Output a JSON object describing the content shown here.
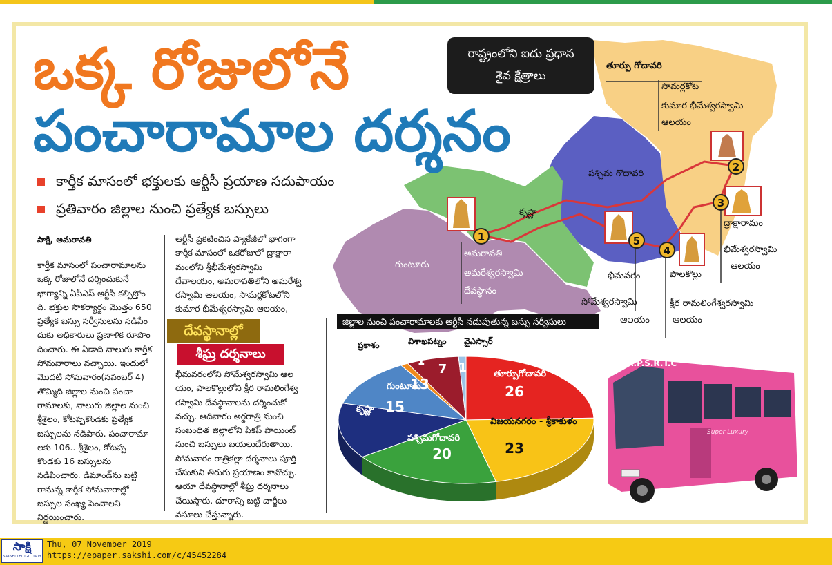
{
  "headline": {
    "line1": "ఒక్క రోజులోనే",
    "line2": "పంచారామాల దర్శనం"
  },
  "bullets": [
    "కార్తీక మాసంలో భక్తులకు ఆర్టీసీ ప్రయాణ సదుపాయం",
    "ప్రతివారం జిల్లాల నుంచి ప్రత్యేక బస్సులు"
  ],
  "article": {
    "byline": "సాక్షి, అమరావతి",
    "col1": [
      "కార్తీక మాసంలో పంచారామాలను",
      "ఒక్క రోజులోనే దర్శించుకునే",
      "భాగ్యాన్ని ఏపీఎస్ ఆర్టీసీ కల్పిస్తోం",
      "ది. భక్తుల సౌకర్యార్థం మొత్తం 650",
      "ప్రత్యేక బస్సు సర్వీసులను నడిపేం",
      "దుకు అధికారులు ప్రణాళిక రూపొం",
      "దించారు. ఈ ఏడాది నాలుగు కార్తీక",
      "సోమవారాలు వచ్చాయి. ఇందులో",
      "మొదటి సోమవారం(నవంబర్ 4)",
      "తొమ్మిది జిల్లాల నుంచి పంచా",
      "రామాలకు, నాలుగు జిల్లాల నుంచి",
      "శ్రీశైలం, కోటప్పకొండకు ప్రత్యేక",
      "బస్సులను నడిపారు. పంచారామా",
      "లకు 106.. శ్రీశైలం, కోటప్ప",
      "కొండకు 16 బస్సులను",
      "నడిపించారు. డిమాండ్‌ను బట్టి",
      "రానున్న కార్తీక సోమవారాల్లో",
      "బస్సుల సంఖ్య పెంచాలని",
      "నిర్ణయించారు."
    ],
    "col2a": [
      "ఆర్టీసీ ప్రకటించిన ప్యాకేజీలో భాగంగా",
      "కార్తీక మాసంలో ఒకరోజులో ద్రాక్షారా",
      "మంలోని శ్రీభీమేశ్వరస్వామి",
      "దేవాలయం, అమరావతిలోని అమరేశ్వ",
      "రస్వామి ఆలయం, సామర్లకోటలోని",
      "కుమార భీమేశ్వరస్వామి ఆలయం,"
    ],
    "subhead1": "దేవస్థానాల్లో",
    "subhead2": "శీఘ్ర దర్శనాలు",
    "col2b": [
      "భీమవరంలోని సోమేశ్వరస్వామి ఆల",
      "యం, పాలకొల్లులోని క్షీర రామలింగేశ్వ",
      "రస్వామి దేవస్థానాలను దర్శించుకో",
      "వచ్చు. ఆదివారం అర్ధరాత్రి నుంచి",
      "సంబంధిత జిల్లాలోని పికప్ పాయింట్",
      "నుంచి బస్సులు బయలుదేరుతాయి.",
      "సోమవారం రాత్రికల్లా దర్శనాలు పూర్తి",
      "చేసుకుని తిరుగు ప్రయాణం కావొచ్చు.",
      "ఆయా దేవస్థానాల్లో శీఘ్ర దర్శనాలు",
      "చేయిస్తారు. దూరాన్ని బట్టి చార్జీలు",
      "వసూలు చేస్తున్నారు."
    ]
  },
  "map": {
    "title_line1": "రాష్ట్రంలోని ఐదు ప్రధాన",
    "title_line2": "శైవ క్షేత్రాలు",
    "districts": {
      "east": "తూర్పు గోదావరి",
      "west": "పశ్చిమ గోదావరి",
      "krishna": "కృష్ణా",
      "guntur": "గుంటూరు"
    },
    "markers": [
      "1",
      "2",
      "3",
      "4",
      "5"
    ],
    "places": {
      "p1_line1": "అమరావతి",
      "p1_line2": "అమరేశ్వరస్వామి",
      "p1_line3": "దేవస్థానం",
      "p2_line1": "సామర్లకోట",
      "p2_line2": "కుమార భీమేశ్వరస్వామి",
      "p2_line3": "ఆలయం",
      "p3_line1": "ద్రాక్షారామం",
      "p3_line2": "భీమేశ్వరస్వామి",
      "p3_line3": "ఆలయం",
      "p4_line1": "పాలకొల్లు",
      "p4_line2": "క్షీర రామలింగేశ్వరస్వామి",
      "p4_line3": "ఆలయం",
      "p5_line1": "భీమవరం",
      "p5_line2": "సోమేశ్వరస్వామి",
      "p5_line3": "ఆలయం"
    }
  },
  "chart_data": {
    "type": "pie",
    "title": "జిల్లాల నుంచి పంచారామాలకు ఆర్టీసీ నడుపుతున్న బస్సు సర్వీసులు",
    "slices": [
      {
        "label": "తూర్పుగోదావరి",
        "value": 26,
        "color": "#e52421"
      },
      {
        "label": "విజయనగరం - శ్రీకాకుళం",
        "value": 23,
        "color": "#f8c317"
      },
      {
        "label": "పశ్చిమగోదావరి",
        "value": 20,
        "color": "#3aa23d"
      },
      {
        "label": "కృష్ణా",
        "value": 15,
        "color": "#1e2f7f"
      },
      {
        "label": "గుంటూరు",
        "value": 13,
        "color": "#4f86c6"
      },
      {
        "label": "ప్రకాశం",
        "value": 1,
        "color": "#f08a1c"
      },
      {
        "label": "విశాఖపట్నం",
        "value": 7,
        "color": "#9b1c2c"
      },
      {
        "label": "వైఎస్సార్",
        "value": 1,
        "color": "#9cc3e6"
      }
    ]
  },
  "bus": {
    "front_text": "A.P.S.R.T.C",
    "side_text": "Super Luxury"
  },
  "footer": {
    "logo": "సాక్షి",
    "logo_sub": "SAKSHI TELUGU DAILY",
    "date": "Thu, 07 November 2019",
    "url": "https://epaper.sakshi.com/c/45452284"
  }
}
